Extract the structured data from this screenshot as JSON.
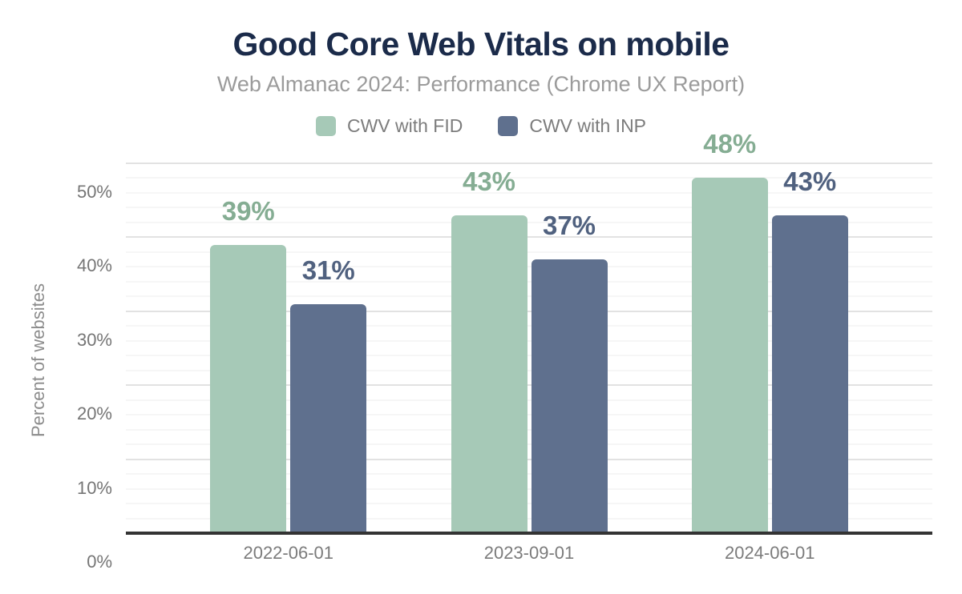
{
  "chart_data": {
    "type": "bar",
    "title": "Good Core Web Vitals on mobile",
    "subtitle": "Web Almanac 2024: Performance (Chrome UX Report)",
    "categories": [
      "2022-06-01",
      "2023-09-01",
      "2024-06-01"
    ],
    "series": [
      {
        "name": "CWV with FID",
        "values": [
          39,
          43,
          48
        ],
        "data_labels": [
          "39%",
          "43%",
          "48%"
        ],
        "color": "#a6c9b7",
        "label_color": "#85ad93"
      },
      {
        "name": "CWV with INP",
        "values": [
          31,
          37,
          43
        ],
        "data_labels": [
          "31%",
          "37%",
          "43%"
        ],
        "color": "#5f708e",
        "label_color": "#50617f"
      }
    ],
    "xlabel": "",
    "ylabel": "Percent of websites",
    "ylim": [
      0,
      50
    ],
    "yticks": [
      {
        "value": 0,
        "label": "0%"
      },
      {
        "value": 10,
        "label": "10%"
      },
      {
        "value": 20,
        "label": "20%"
      },
      {
        "value": 30,
        "label": "30%"
      },
      {
        "value": 40,
        "label": "40%"
      },
      {
        "value": 50,
        "label": "50%"
      }
    ],
    "grid": {
      "orientation": "horizontal",
      "minor_step": 2,
      "major_step": 10
    },
    "legend_position": "top",
    "colors": {
      "title": "#1b2b4a",
      "subtitle": "#9b9b9b",
      "axis_line": "#333333",
      "tick_label": "#757575",
      "major_grid": "#e2e2e2",
      "minor_grid": "#f6f6f6"
    }
  }
}
